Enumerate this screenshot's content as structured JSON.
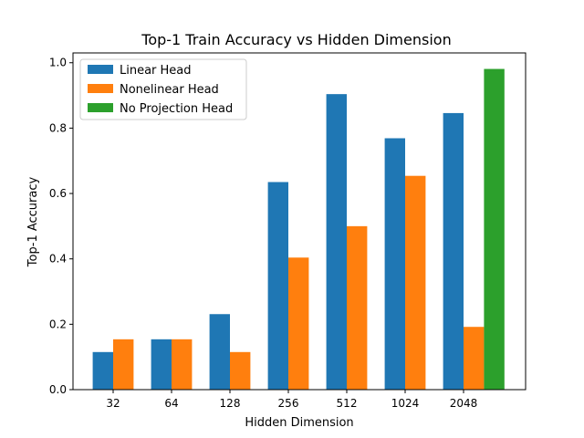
{
  "chart_data": {
    "type": "bar",
    "title": "Top-1 Train Accuracy vs Hidden Dimension",
    "xlabel": "Hidden Dimension",
    "ylabel": "Top-1 Accuracy",
    "ylim": [
      0,
      1.03
    ],
    "yticks": [
      "0.0",
      "0.2",
      "0.4",
      "0.6",
      "0.8",
      "1.0"
    ],
    "categories": [
      "32",
      "64",
      "128",
      "256",
      "512",
      "1024",
      "2048"
    ],
    "grid": false,
    "legend_position": "top-left",
    "series": [
      {
        "name": "Linear Head",
        "color": "#1f77b4",
        "values": [
          0.115,
          0.154,
          0.231,
          0.635,
          0.904,
          0.769,
          0.846
        ]
      },
      {
        "name": "Nonelinear Head",
        "color": "#ff7f0e",
        "values": [
          0.154,
          0.154,
          0.115,
          0.404,
          0.5,
          0.654,
          0.192
        ]
      },
      {
        "name": "No Projection Head",
        "color": "#2ca02c",
        "values": [
          null,
          null,
          null,
          null,
          null,
          null,
          0.981
        ]
      }
    ]
  }
}
